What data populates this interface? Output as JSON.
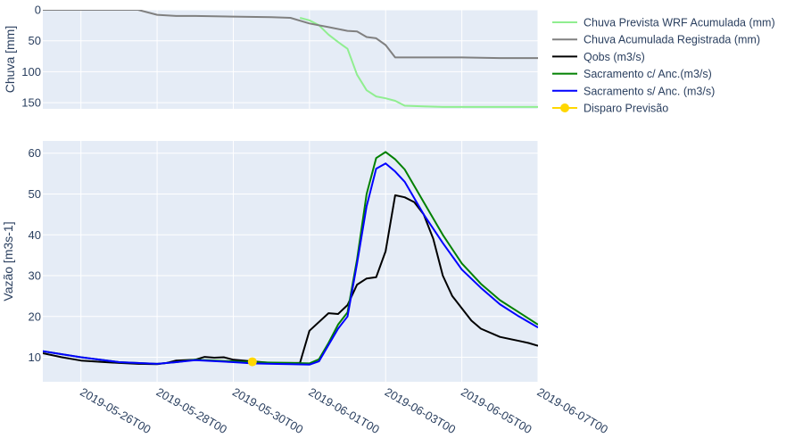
{
  "chart_data": {
    "type": "line",
    "layout": "two stacked panels sharing x-axis",
    "x_axis": {
      "ticks": [
        "2019-05-26T00",
        "2019-05-28T00",
        "2019-05-30T00",
        "2019-06-01T00",
        "2019-06-03T00",
        "2019-06-05T00",
        "2019-06-07T00"
      ],
      "range": [
        "2019-05-25T00",
        "2019-06-07T00"
      ]
    },
    "panels": [
      {
        "id": "rain",
        "ylabel": "Chuva [mm]",
        "y_reversed": true,
        "ylim": [
          0,
          160
        ],
        "yticks": [
          0,
          50,
          100,
          150
        ],
        "series": [
          {
            "name": "Chuva Prevista WRF Acumulada (mm)",
            "color": "#90ee90",
            "points": [
              [
                "2019-05-31T18",
                13
              ],
              [
                "2019-06-01T00",
                17
              ],
              [
                "2019-06-01T06",
                25
              ],
              [
                "2019-06-01T12",
                40
              ],
              [
                "2019-06-01T18",
                52
              ],
              [
                "2019-06-02T00",
                63
              ],
              [
                "2019-06-02T06",
                105
              ],
              [
                "2019-06-02T12",
                130
              ],
              [
                "2019-06-02T18",
                140
              ],
              [
                "2019-06-03T00",
                143
              ],
              [
                "2019-06-03T06",
                147
              ],
              [
                "2019-06-03T12",
                155
              ],
              [
                "2019-06-04T00",
                156
              ],
              [
                "2019-06-04T12",
                157
              ],
              [
                "2019-06-05T00",
                157
              ],
              [
                "2019-06-06T00",
                157
              ],
              [
                "2019-06-07T00",
                157
              ]
            ]
          },
          {
            "name": "Chuva Acumulada Registrada (mm)",
            "color": "#808080",
            "points": [
              [
                "2019-05-25T00",
                0
              ],
              [
                "2019-05-26T00",
                0
              ],
              [
                "2019-05-27T00",
                0
              ],
              [
                "2019-05-27T12",
                0
              ],
              [
                "2019-05-28T00",
                8
              ],
              [
                "2019-05-28T12",
                10
              ],
              [
                "2019-05-29T00",
                10
              ],
              [
                "2019-05-30T00",
                11
              ],
              [
                "2019-05-31T00",
                12
              ],
              [
                "2019-05-31T12",
                13
              ],
              [
                "2019-06-01T00",
                22
              ],
              [
                "2019-06-01T12",
                28
              ],
              [
                "2019-06-02T00",
                34
              ],
              [
                "2019-06-02T06",
                35
              ],
              [
                "2019-06-02T12",
                44
              ],
              [
                "2019-06-02T18",
                46
              ],
              [
                "2019-06-03T00",
                57
              ],
              [
                "2019-06-03T06",
                77
              ],
              [
                "2019-06-04T00",
                77
              ],
              [
                "2019-06-05T00",
                77
              ],
              [
                "2019-06-06T00",
                78
              ],
              [
                "2019-06-07T00",
                78
              ]
            ]
          }
        ]
      },
      {
        "id": "flow",
        "ylabel": "Vazão [m3s-1]",
        "ylim": [
          4,
          63
        ],
        "yticks": [
          10,
          20,
          30,
          40,
          50,
          60
        ],
        "series": [
          {
            "name": "Qobs (m3/s)",
            "color": "#000000",
            "points": [
              [
                "2019-05-25T00",
                11
              ],
              [
                "2019-05-25T12",
                10
              ],
              [
                "2019-05-26T00",
                9.2
              ],
              [
                "2019-05-26T12",
                8.9
              ],
              [
                "2019-05-27T00",
                8.6
              ],
              [
                "2019-05-27T12",
                8.4
              ],
              [
                "2019-05-28T00",
                8.3
              ],
              [
                "2019-05-28T06",
                8.6
              ],
              [
                "2019-05-28T12",
                9.2
              ],
              [
                "2019-05-28T18",
                9.3
              ],
              [
                "2019-05-29T00",
                9.4
              ],
              [
                "2019-05-29T06",
                10.1
              ],
              [
                "2019-05-29T12",
                9.9
              ],
              [
                "2019-05-29T18",
                10.0
              ],
              [
                "2019-05-30T00",
                9.4
              ],
              [
                "2019-05-30T12",
                9.0
              ],
              [
                "2019-05-31T00",
                8.6
              ],
              [
                "2019-05-31T12",
                8.6
              ],
              [
                "2019-05-31T18",
                8.6
              ],
              [
                "2019-06-01T00",
                16.5
              ],
              [
                "2019-06-01T12",
                20.8
              ],
              [
                "2019-06-01T18",
                20.6
              ],
              [
                "2019-06-02T00",
                22.8
              ],
              [
                "2019-06-02T06",
                27.8
              ],
              [
                "2019-06-02T12",
                29.3
              ],
              [
                "2019-06-02T18",
                29.6
              ],
              [
                "2019-06-03T00",
                36
              ],
              [
                "2019-06-03T06",
                49.7
              ],
              [
                "2019-06-03T12",
                49.2
              ],
              [
                "2019-06-03T18",
                48
              ],
              [
                "2019-06-04T00",
                45
              ],
              [
                "2019-06-04T06",
                39
              ],
              [
                "2019-06-04T12",
                30
              ],
              [
                "2019-06-04T18",
                25
              ],
              [
                "2019-06-05T00",
                22
              ],
              [
                "2019-06-05T06",
                19
              ],
              [
                "2019-06-05T12",
                17
              ],
              [
                "2019-06-06T00",
                15
              ],
              [
                "2019-06-06T12",
                14
              ],
              [
                "2019-06-06T18",
                13.5
              ],
              [
                "2019-06-07T00",
                12.8
              ]
            ]
          },
          {
            "name": "Sacramento c/ Anc.(m3/s)",
            "color": "#008000",
            "points": [
              [
                "2019-05-25T00",
                11.5
              ],
              [
                "2019-05-26T00",
                10
              ],
              [
                "2019-05-27T00",
                8.8
              ],
              [
                "2019-05-28T00",
                8.4
              ],
              [
                "2019-05-28T12",
                8.8
              ],
              [
                "2019-05-29T00",
                9.4
              ],
              [
                "2019-05-30T00",
                9.0
              ],
              [
                "2019-05-30T12",
                8.8
              ],
              [
                "2019-05-31T00",
                8.7
              ],
              [
                "2019-05-31T12",
                8.6
              ],
              [
                "2019-06-01T00",
                8.5
              ],
              [
                "2019-06-01T06",
                9.5
              ],
              [
                "2019-06-01T12",
                13.5
              ],
              [
                "2019-06-01T18",
                18
              ],
              [
                "2019-06-02T00",
                21
              ],
              [
                "2019-06-02T06",
                34
              ],
              [
                "2019-06-02T12",
                50
              ],
              [
                "2019-06-02T18",
                58.8
              ],
              [
                "2019-06-03T00",
                60.3
              ],
              [
                "2019-06-03T06",
                58.5
              ],
              [
                "2019-06-03T12",
                56
              ],
              [
                "2019-06-04T00",
                48
              ],
              [
                "2019-06-04T12",
                40
              ],
              [
                "2019-06-05T00",
                33
              ],
              [
                "2019-06-05T12",
                28
              ],
              [
                "2019-06-06T00",
                24
              ],
              [
                "2019-06-06T12",
                21
              ],
              [
                "2019-06-07T00",
                18
              ]
            ]
          },
          {
            "name": "Sacramento s/ Anc. (m3/s)",
            "color": "#0000ff",
            "points": [
              [
                "2019-05-25T00",
                11.5
              ],
              [
                "2019-05-26T00",
                10
              ],
              [
                "2019-05-27T00",
                8.8
              ],
              [
                "2019-05-28T00",
                8.4
              ],
              [
                "2019-05-28T12",
                8.8
              ],
              [
                "2019-05-29T00",
                9.3
              ],
              [
                "2019-05-30T00",
                8.8
              ],
              [
                "2019-05-30T12",
                8.5
              ],
              [
                "2019-05-31T00",
                8.4
              ],
              [
                "2019-05-31T12",
                8.3
              ],
              [
                "2019-06-01T00",
                8.2
              ],
              [
                "2019-06-01T06",
                9.0
              ],
              [
                "2019-06-01T12",
                13
              ],
              [
                "2019-06-01T18",
                17
              ],
              [
                "2019-06-02T00",
                20
              ],
              [
                "2019-06-02T06",
                33
              ],
              [
                "2019-06-02T12",
                47
              ],
              [
                "2019-06-02T18",
                56.2
              ],
              [
                "2019-06-03T00",
                57.5
              ],
              [
                "2019-06-03T06",
                55.5
              ],
              [
                "2019-06-03T12",
                53
              ],
              [
                "2019-06-04T00",
                45
              ],
              [
                "2019-06-04T12",
                38
              ],
              [
                "2019-06-05T00",
                31.5
              ],
              [
                "2019-06-05T12",
                27
              ],
              [
                "2019-06-06T00",
                23
              ],
              [
                "2019-06-06T12",
                20
              ],
              [
                "2019-06-07T00",
                17.3
              ]
            ]
          },
          {
            "name": "Disparo Previsão",
            "color": "#ffd700",
            "marker": true,
            "points": [
              [
                "2019-05-30T12",
                8.9
              ]
            ]
          }
        ]
      }
    ],
    "legend": {
      "placement": "right",
      "items": [
        {
          "label": "Chuva Prevista WRF Acumulada (mm)",
          "color": "#90ee90",
          "marker": false
        },
        {
          "label": "Chuva Acumulada Registrada (mm)",
          "color": "#808080",
          "marker": false
        },
        {
          "label": "Qobs (m3/s)",
          "color": "#000000",
          "marker": false
        },
        {
          "label": "Sacramento c/ Anc.(m3/s)",
          "color": "#008000",
          "marker": false
        },
        {
          "label": "Sacramento s/ Anc. (m3/s)",
          "color": "#0000ff",
          "marker": false
        },
        {
          "label": "Disparo Previsão",
          "color": "#ffd700",
          "marker": true
        }
      ]
    },
    "colors": {
      "plot_bg": "#e5ecf6",
      "grid": "#ffffff",
      "text": "#2a3f5f"
    }
  }
}
